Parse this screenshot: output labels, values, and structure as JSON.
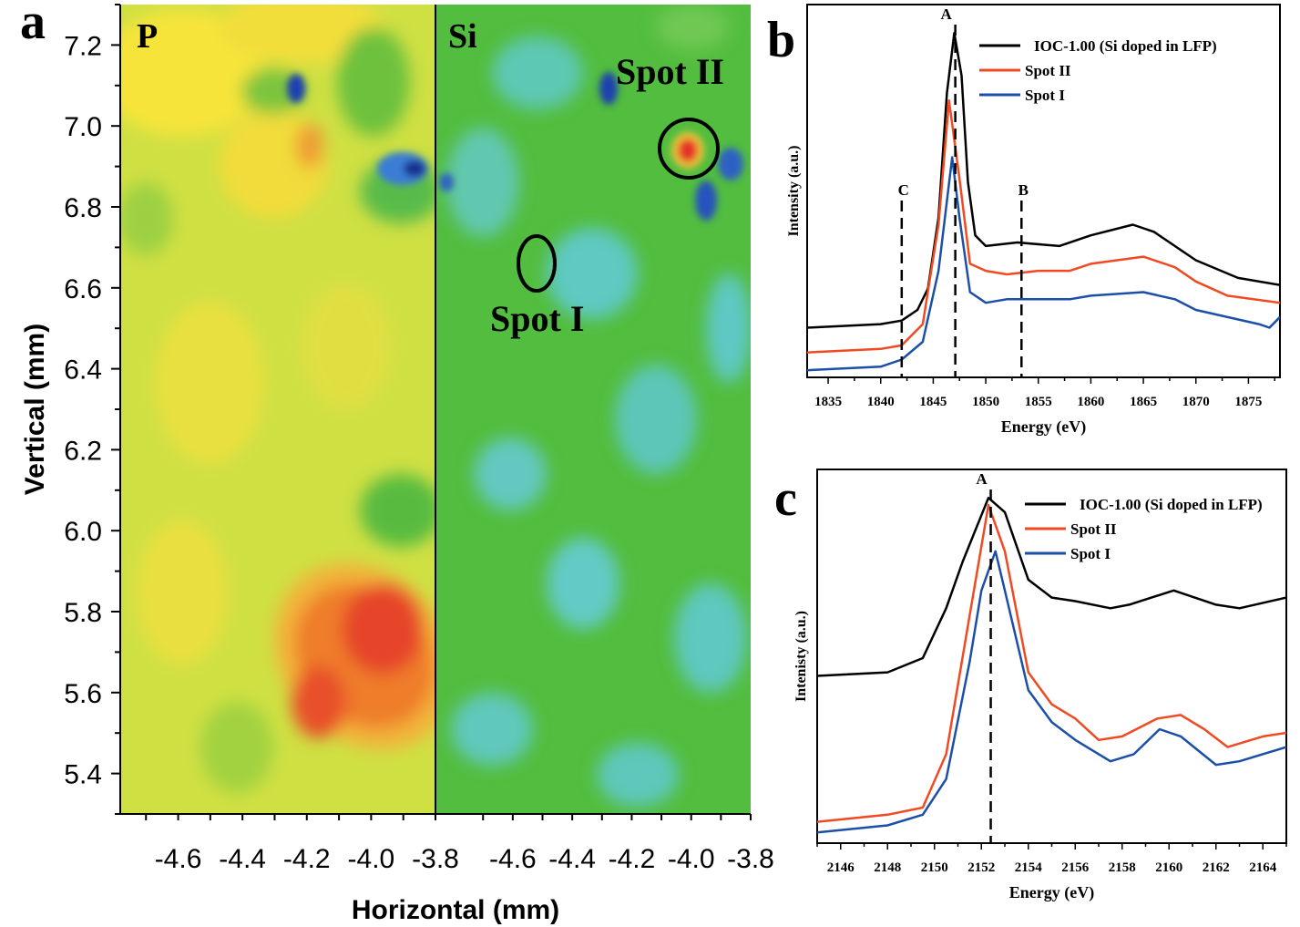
{
  "panel_labels": {
    "a": "a",
    "b": "b",
    "c": "c"
  },
  "colors": {
    "ioc": "#000000",
    "spot2": "#f04a23",
    "spot1": "#1c4fa8"
  },
  "chart_data": [
    {
      "type": "heatmap",
      "panel": "a",
      "xlabel": "Horizontal (mm)",
      "ylabel": "Vertical (mm)",
      "ylim": [
        5.3,
        7.3
      ],
      "yticks": [
        "7.2",
        "7.0",
        "6.8",
        "6.6",
        "6.4",
        "6.2",
        "6.0",
        "5.8",
        "5.6",
        "5.4"
      ],
      "maps": [
        {
          "label": "P",
          "xlim": [
            -4.78,
            -3.8
          ],
          "xticks": [
            "-4.6",
            "-4.4",
            "-4.2",
            "-4.0",
            "-3.8"
          ]
        },
        {
          "label": "Si",
          "xlim": [
            -4.86,
            -3.8
          ],
          "xticks": [
            "-4.6",
            "-4.4",
            "-4.2",
            "-4.0",
            "-3.8"
          ]
        }
      ],
      "annotations": [
        {
          "label": "Spot I",
          "x": -4.48,
          "y": 6.66
        },
        {
          "label": "Spot II",
          "x": -4.0,
          "y": 6.94
        }
      ],
      "colormap": "jet"
    },
    {
      "type": "line",
      "panel": "b",
      "xlabel": "Energy (eV)",
      "ylabel": "Intensity (a.u.)",
      "xlim": [
        1833,
        1878
      ],
      "ylim": [
        0,
        1.05
      ],
      "xticks": [
        1835,
        1840,
        1845,
        1850,
        1855,
        1860,
        1865,
        1870,
        1875
      ],
      "markers": [
        {
          "label": "C",
          "x": 1842
        },
        {
          "label": "A",
          "x": 1847.1
        },
        {
          "label": "B",
          "x": 1853.4
        }
      ],
      "legend": "top-right",
      "series": [
        {
          "name": "IOC-1.00 (Si doped in LFP)",
          "color": "#000000",
          "x": [
            1833,
            1840,
            1842,
            1843.5,
            1844.5,
            1845.5,
            1846.3,
            1847,
            1847.7,
            1848.3,
            1849,
            1850,
            1853,
            1857,
            1860,
            1864,
            1866,
            1870,
            1874,
            1878
          ],
          "y": [
            0.14,
            0.15,
            0.16,
            0.19,
            0.25,
            0.45,
            0.8,
            0.97,
            0.85,
            0.55,
            0.4,
            0.37,
            0.38,
            0.37,
            0.4,
            0.43,
            0.41,
            0.33,
            0.28,
            0.26
          ]
        },
        {
          "name": "Spot II",
          "color": "#f04a23",
          "x": [
            1833,
            1840,
            1842,
            1844,
            1845.5,
            1846.5,
            1847.5,
            1848.5,
            1850,
            1852,
            1855,
            1858,
            1860,
            1865,
            1868,
            1870,
            1873,
            1878
          ],
          "y": [
            0.07,
            0.08,
            0.09,
            0.15,
            0.43,
            0.78,
            0.56,
            0.32,
            0.3,
            0.29,
            0.3,
            0.3,
            0.32,
            0.34,
            0.31,
            0.27,
            0.23,
            0.21
          ]
        },
        {
          "name": "Spot I",
          "color": "#1c4fa8",
          "x": [
            1833,
            1840,
            1842,
            1844,
            1845.5,
            1846.8,
            1847.5,
            1848.5,
            1850,
            1852,
            1855,
            1858,
            1860,
            1865,
            1868,
            1870,
            1876,
            1877,
            1878
          ],
          "y": [
            0.02,
            0.03,
            0.05,
            0.1,
            0.3,
            0.62,
            0.45,
            0.24,
            0.21,
            0.22,
            0.22,
            0.22,
            0.23,
            0.24,
            0.22,
            0.19,
            0.15,
            0.14,
            0.17
          ]
        }
      ]
    },
    {
      "type": "line",
      "panel": "c",
      "xlabel": "Energy (eV)",
      "ylabel": "Intenisty (a.u.)",
      "xlim": [
        2145,
        2165
      ],
      "ylim": [
        0,
        1.05
      ],
      "xticks": [
        2146,
        2148,
        2150,
        2152,
        2154,
        2156,
        2158,
        2160,
        2162,
        2164
      ],
      "markers": [
        {
          "label": "A",
          "x": 2152.4
        }
      ],
      "legend": "top-right",
      "series": [
        {
          "name": "IOC-1.00 (Si doped in LFP)",
          "color": "#000000",
          "x": [
            2145,
            2148,
            2149.5,
            2150.5,
            2151.2,
            2152.3,
            2153,
            2154,
            2155,
            2156,
            2157.5,
            2158.3,
            2160.2,
            2162,
            2163,
            2165
          ],
          "y": [
            0.47,
            0.48,
            0.52,
            0.66,
            0.79,
            0.97,
            0.93,
            0.74,
            0.69,
            0.68,
            0.66,
            0.67,
            0.71,
            0.67,
            0.66,
            0.69
          ]
        },
        {
          "name": "Spot II",
          "color": "#f04a23",
          "x": [
            2145,
            2148,
            2149.5,
            2150.5,
            2151.5,
            2152.3,
            2153,
            2154,
            2155,
            2156,
            2157,
            2158,
            2159.5,
            2160.5,
            2161.5,
            2162.5,
            2164,
            2165
          ],
          "y": [
            0.06,
            0.08,
            0.1,
            0.25,
            0.64,
            0.95,
            0.82,
            0.48,
            0.39,
            0.35,
            0.29,
            0.3,
            0.35,
            0.36,
            0.32,
            0.27,
            0.3,
            0.31
          ]
        },
        {
          "name": "Spot I",
          "color": "#1c4fa8",
          "x": [
            2145,
            2148,
            2149.5,
            2150.5,
            2151.5,
            2152,
            2152.6,
            2153,
            2154,
            2155,
            2156,
            2157.5,
            2158.5,
            2159.6,
            2160.5,
            2162,
            2163,
            2165
          ],
          "y": [
            0.03,
            0.05,
            0.08,
            0.18,
            0.51,
            0.71,
            0.82,
            0.71,
            0.43,
            0.34,
            0.29,
            0.23,
            0.25,
            0.32,
            0.3,
            0.22,
            0.23,
            0.27
          ]
        }
      ]
    }
  ]
}
